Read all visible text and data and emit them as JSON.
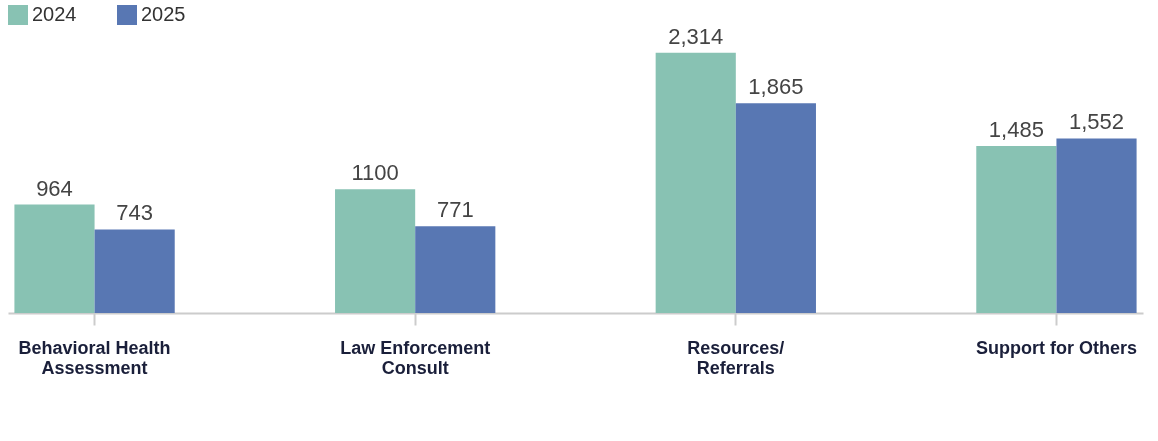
{
  "chart_data": {
    "type": "bar",
    "categories": [
      "Behavioral Health Assessment",
      "Law Enforcement Consult",
      "Resources/ Referrals",
      "Support for Others"
    ],
    "series": [
      {
        "name": "2024",
        "color": "#88c2b3",
        "values": [
          964,
          1100,
          2314,
          1485
        ],
        "value_labels": [
          "964",
          "1100",
          "2,314",
          "1,485"
        ]
      },
      {
        "name": "2025",
        "color": "#5877b3",
        "values": [
          743,
          771,
          1865,
          1552
        ],
        "value_labels": [
          "743",
          "771",
          "1,865",
          "1,552"
        ]
      }
    ],
    "legend": "top",
    "grid": false
  }
}
